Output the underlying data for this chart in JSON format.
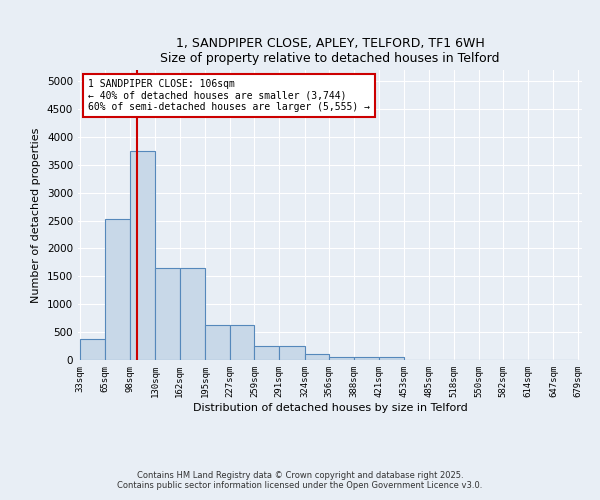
{
  "title_line1": "1, SANDPIPER CLOSE, APLEY, TELFORD, TF1 6WH",
  "title_line2": "Size of property relative to detached houses in Telford",
  "xlabel": "Distribution of detached houses by size in Telford",
  "ylabel": "Number of detached properties",
  "bin_edges": [
    33,
    65,
    98,
    130,
    162,
    195,
    227,
    259,
    291,
    324,
    356,
    388,
    421,
    453,
    485,
    518,
    550,
    582,
    614,
    647,
    679
  ],
  "bar_heights": [
    375,
    2525,
    3750,
    1650,
    1650,
    625,
    625,
    250,
    250,
    100,
    50,
    50,
    50,
    0,
    0,
    0,
    0,
    0,
    0,
    0
  ],
  "bar_color": "#c8d8e8",
  "bar_edge_color": "#5588bb",
  "vline_x": 106,
  "vline_color": "#cc0000",
  "annotation_text": "1 SANDPIPER CLOSE: 106sqm\n← 40% of detached houses are smaller (3,744)\n60% of semi-detached houses are larger (5,555) →",
  "annotation_box_color": "#ffffff",
  "annotation_edge_color": "#cc0000",
  "ylim": [
    0,
    5200
  ],
  "yticks": [
    0,
    500,
    1000,
    1500,
    2000,
    2500,
    3000,
    3500,
    4000,
    4500,
    5000
  ],
  "background_color": "#e8eef5",
  "footer_line1": "Contains HM Land Registry data © Crown copyright and database right 2025.",
  "footer_line2": "Contains public sector information licensed under the Open Government Licence v3.0."
}
